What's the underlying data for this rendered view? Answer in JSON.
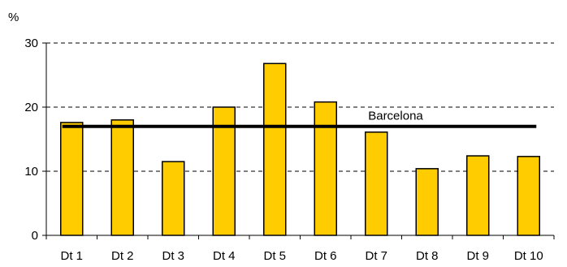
{
  "chart_data": {
    "type": "bar",
    "ylabel": "%",
    "ylim": [
      0,
      30
    ],
    "yticks": [
      "0",
      "10",
      "20",
      "30"
    ],
    "categories": [
      "Dt 1",
      "Dt 2",
      "Dt 3",
      "Dt 4",
      "Dt 5",
      "Dt 6",
      "Dt 7",
      "Dt 8",
      "Dt 9",
      "Dt 10"
    ],
    "values": [
      17.6,
      18.0,
      11.5,
      20.0,
      26.8,
      20.8,
      16.1,
      10.4,
      12.4,
      12.3
    ],
    "grid": "horizontal dashed",
    "bar_color": "#FFCC00",
    "bar_edge_color": "#000000",
    "reference_line": {
      "label": "Barcelona",
      "value": 17.0,
      "color": "#000000"
    }
  }
}
